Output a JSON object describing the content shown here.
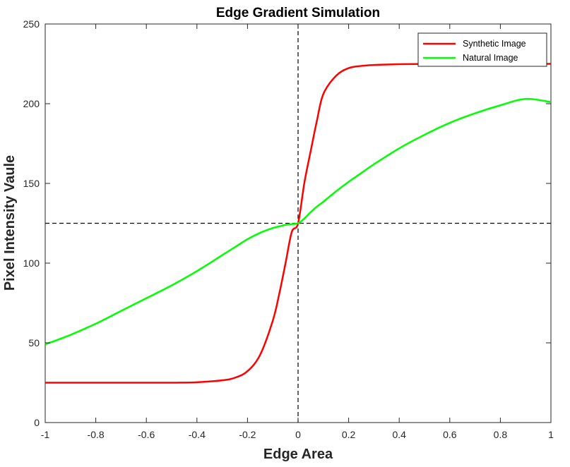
{
  "chart_data": {
    "type": "line",
    "title": "Edge Gradient Simulation",
    "xlabel": "Edge Area",
    "ylabel": "Pixel Intensity Vaule",
    "xlim": [
      -1,
      1
    ],
    "ylim": [
      0,
      250
    ],
    "xticks": [
      -1,
      -0.8,
      -0.6,
      -0.4,
      -0.2,
      0,
      0.2,
      0.4,
      0.6,
      0.8,
      1
    ],
    "xtick_labels": [
      "-1",
      "-0.8",
      "-0.6",
      "-0.4",
      "-0.2",
      "0",
      "0.2",
      "0.4",
      "0.6",
      "0.8",
      "1"
    ],
    "yticks": [
      0,
      50,
      100,
      150,
      200,
      250
    ],
    "ytick_labels": [
      "0",
      "50",
      "100",
      "150",
      "200",
      "250"
    ],
    "legend_position": "top-right",
    "grid": false,
    "reference_lines": [
      {
        "orientation": "vertical",
        "value": 0,
        "style": "dashed",
        "color": "#000000"
      },
      {
        "orientation": "horizontal",
        "value": 125,
        "style": "dashed",
        "color": "#000000"
      }
    ],
    "x": [
      -1,
      -0.9,
      -0.8,
      -0.7,
      -0.6,
      -0.5,
      -0.4,
      -0.3,
      -0.25,
      -0.2,
      -0.15,
      -0.1,
      -0.075,
      -0.05,
      -0.025,
      0,
      0.025,
      0.05,
      0.075,
      0.1,
      0.15,
      0.2,
      0.25,
      0.3,
      0.4,
      0.5,
      0.6,
      0.7,
      0.8,
      0.9,
      1
    ],
    "series": [
      {
        "name": "Synthetic Image",
        "color": "#ff0000",
        "values": [
          25,
          25,
          25,
          25,
          25,
          25,
          25.3,
          26.5,
          28.1,
          32.2,
          42.5,
          63.9,
          80.3,
          99.6,
          119.5,
          125,
          150.5,
          170.4,
          189.7,
          206.1,
          217.5,
          222.3,
          223.7,
          224.3,
          224.8,
          224.9,
          225,
          225,
          225,
          225,
          225
        ]
      },
      {
        "name": "Natural Image",
        "color": "#00ff00",
        "values": [
          49,
          55,
          62,
          70,
          78,
          86,
          95,
          105,
          110,
          115,
          119,
          122,
          123,
          124,
          124.5,
          125,
          128,
          132,
          135.5,
          138.5,
          145,
          151,
          156.5,
          162,
          172,
          180.5,
          188,
          194,
          199,
          203,
          201
        ]
      }
    ]
  }
}
